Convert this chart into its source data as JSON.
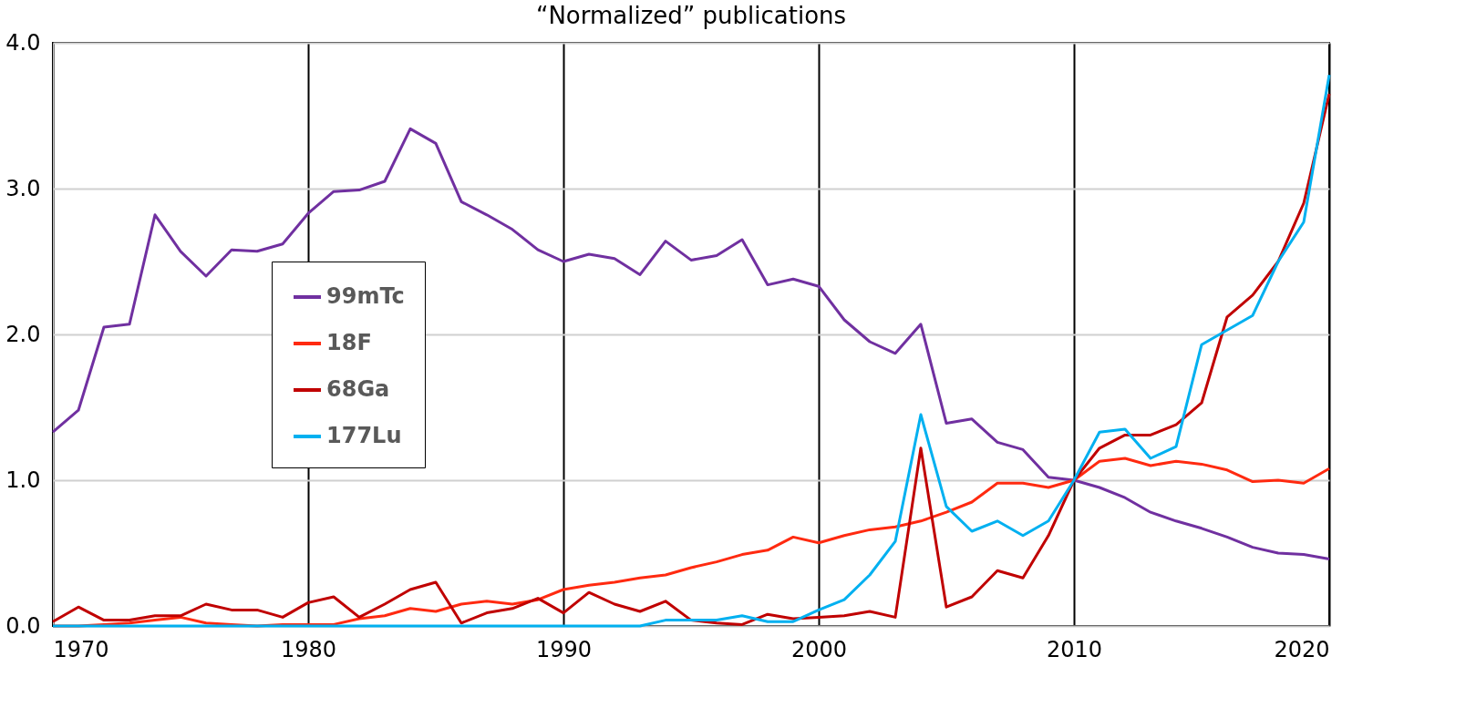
{
  "chart_data": {
    "type": "line",
    "title": "“Normalized” publications",
    "x": [
      1970,
      1971,
      1972,
      1973,
      1974,
      1975,
      1976,
      1977,
      1978,
      1979,
      1980,
      1981,
      1982,
      1983,
      1984,
      1985,
      1986,
      1987,
      1988,
      1989,
      1990,
      1991,
      1992,
      1993,
      1994,
      1995,
      1996,
      1997,
      1998,
      1999,
      2000,
      2001,
      2002,
      2003,
      2004,
      2005,
      2006,
      2007,
      2008,
      2009,
      2010,
      2011,
      2012,
      2013,
      2014,
      2015,
      2016,
      2017,
      2018,
      2019,
      2020
    ],
    "series": [
      {
        "name": "99mTc",
        "color": "#7030a0",
        "values": [
          1.33,
          1.48,
          2.05,
          2.07,
          2.82,
          2.57,
          2.4,
          2.58,
          2.57,
          2.62,
          2.83,
          2.98,
          2.99,
          3.05,
          3.41,
          3.31,
          2.91,
          2.82,
          2.72,
          2.58,
          2.5,
          2.55,
          2.52,
          2.41,
          2.64,
          2.51,
          2.54,
          2.65,
          2.34,
          2.38,
          2.33,
          2.1,
          1.95,
          1.87,
          2.07,
          1.39,
          1.42,
          1.26,
          1.21,
          1.02,
          1.0,
          0.95,
          0.88,
          0.78,
          0.72,
          0.67,
          0.61,
          0.54,
          0.5,
          0.49,
          0.46
        ]
      },
      {
        "name": "18F",
        "color": "#ff2a10",
        "values": [
          0,
          0,
          0.01,
          0.02,
          0.04,
          0.06,
          0.02,
          0.01,
          0,
          0.01,
          0.01,
          0.01,
          0.05,
          0.07,
          0.12,
          0.1,
          0.15,
          0.17,
          0.15,
          0.18,
          0.25,
          0.28,
          0.3,
          0.33,
          0.35,
          0.4,
          0.44,
          0.49,
          0.52,
          0.61,
          0.57,
          0.62,
          0.66,
          0.68,
          0.72,
          0.78,
          0.85,
          0.98,
          0.98,
          0.95,
          1.0,
          1.13,
          1.15,
          1.1,
          1.13,
          1.11,
          1.07,
          0.99,
          1.0,
          0.98,
          1.08
        ]
      },
      {
        "name": "68Ga",
        "color": "#c00000",
        "values": [
          0.03,
          0.13,
          0.04,
          0.04,
          0.07,
          0.07,
          0.15,
          0.11,
          0.11,
          0.06,
          0.16,
          0.2,
          0.06,
          0.15,
          0.25,
          0.3,
          0.02,
          0.09,
          0.12,
          0.19,
          0.09,
          0.23,
          0.15,
          0.1,
          0.17,
          0.04,
          0.02,
          0.01,
          0.08,
          0.05,
          0.06,
          0.07,
          0.1,
          0.06,
          1.22,
          0.13,
          0.2,
          0.38,
          0.33,
          0.62,
          1.0,
          1.22,
          1.31,
          1.31,
          1.38,
          1.53,
          2.12,
          2.27,
          2.5,
          2.9,
          3.65
        ]
      },
      {
        "name": "177Lu",
        "color": "#00b0f0",
        "values": [
          0,
          0,
          0,
          0,
          0,
          0,
          0,
          0,
          0,
          0,
          0,
          0,
          0,
          0,
          0,
          0,
          0,
          0,
          0,
          0,
          0,
          0,
          0,
          0,
          0.04,
          0.04,
          0.04,
          0.07,
          0.03,
          0.03,
          0.11,
          0.18,
          0.35,
          0.58,
          1.45,
          0.82,
          0.65,
          0.72,
          0.62,
          0.72,
          1.0,
          1.33,
          1.35,
          1.15,
          1.23,
          1.93,
          2.03,
          2.13,
          2.5,
          2.77,
          3.78
        ]
      }
    ],
    "xlim": [
      1970,
      2020
    ],
    "xticks": [
      1970,
      1980,
      1990,
      2000,
      2010,
      2020
    ],
    "ylim": [
      0,
      4
    ],
    "yticks": [
      {
        "value": 0,
        "label": "0.0"
      },
      {
        "value": 1,
        "label": "1.0"
      },
      {
        "value": 2,
        "label": "2.0"
      },
      {
        "value": 3,
        "label": "3.0"
      },
      {
        "value": 4,
        "label": "4.0"
      }
    ],
    "grid": true,
    "legend": "left",
    "marker": "none",
    "line_style": "solid"
  }
}
